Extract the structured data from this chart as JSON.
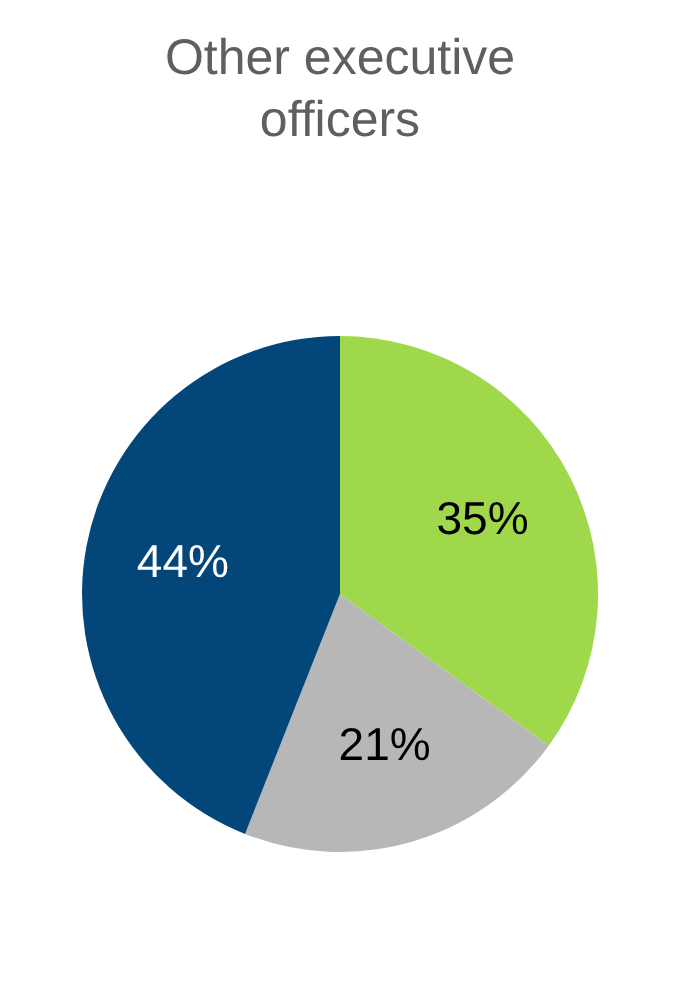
{
  "chart_data": {
    "type": "pie",
    "title": "Other executive officers",
    "categories": [
      null,
      null,
      null
    ],
    "values": [
      35,
      21,
      44
    ],
    "colors": [
      "#a0d84b",
      "#b7b7b7",
      "#03477a"
    ],
    "value_labels": [
      "35%",
      "21%",
      "44%"
    ]
  }
}
